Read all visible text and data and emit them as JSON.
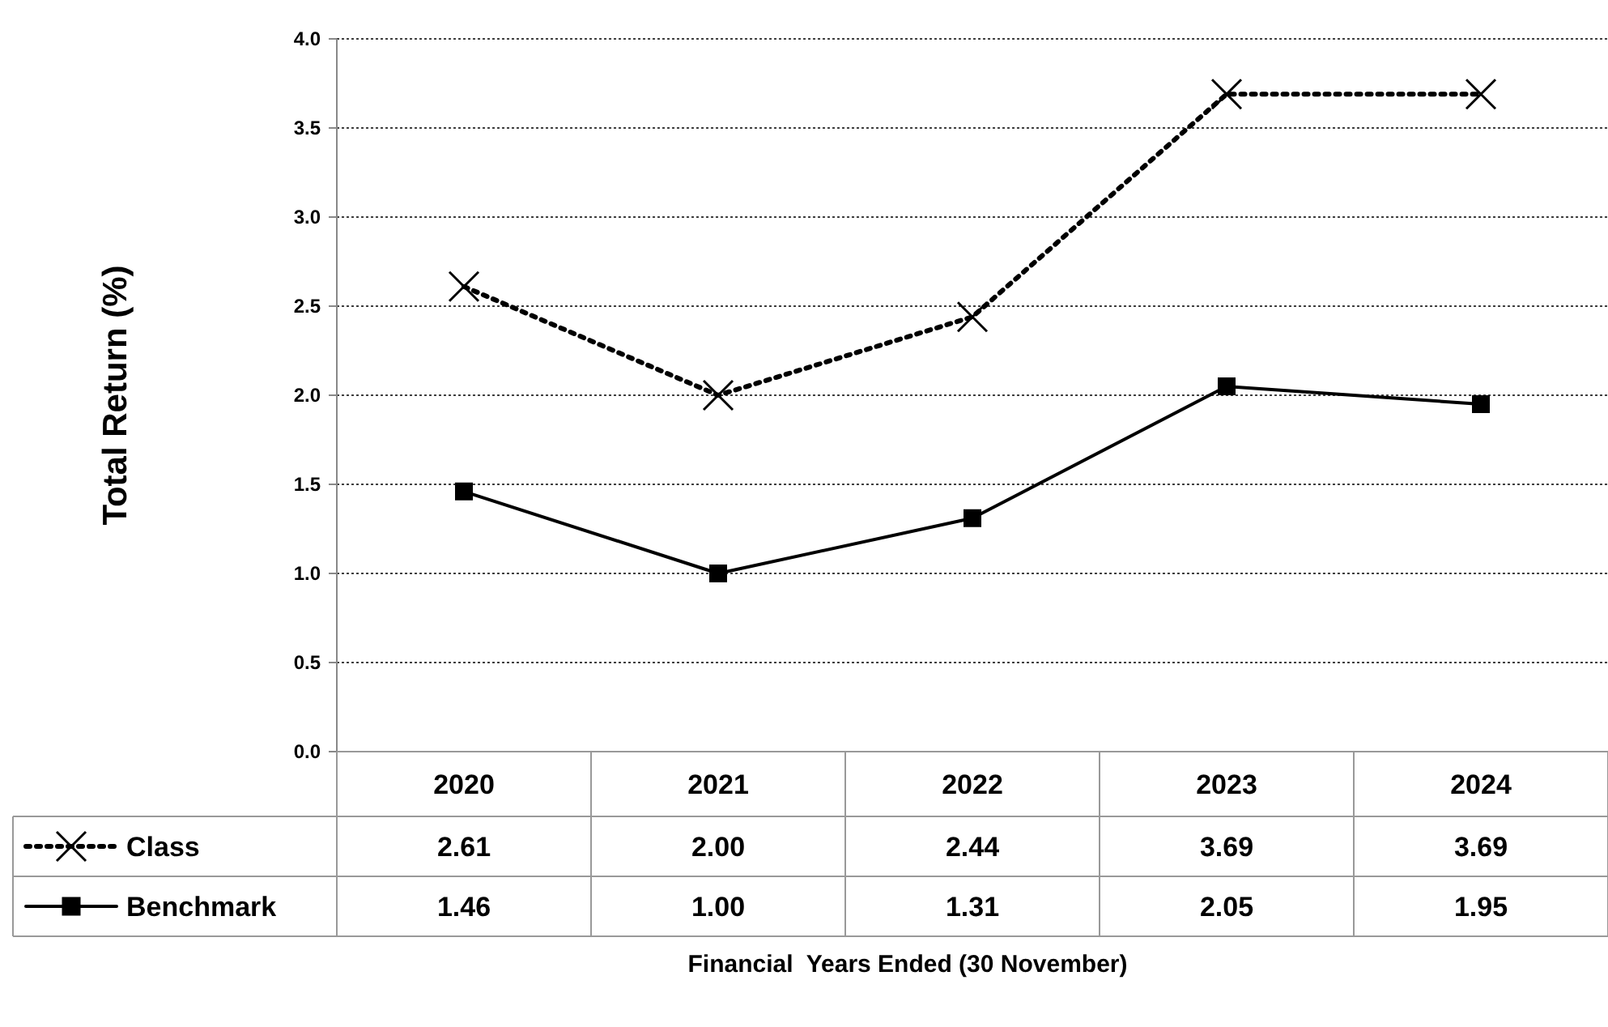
{
  "chart_data": {
    "type": "line",
    "ylabel": "Total Return (%)",
    "annotations": [
      "Financial  Years Ended (30 November)"
    ],
    "categories": [
      "2020",
      "2021",
      "2022",
      "2023",
      "2024"
    ],
    "series": [
      {
        "name": "Class",
        "color": "#000000",
        "values": [
          2.61,
          2.0,
          2.44,
          3.69,
          3.69
        ],
        "value_labels": [
          "2.61",
          "2.00",
          "2.44",
          "3.69",
          "3.69"
        ],
        "marker": "cross",
        "line_style": "dotted"
      },
      {
        "name": "Benchmark",
        "color": "#000000",
        "values": [
          1.46,
          1.0,
          1.31,
          2.05,
          1.95
        ],
        "value_labels": [
          "1.46",
          "1.00",
          "1.31",
          "2.05",
          "1.95"
        ],
        "marker": "square",
        "line_style": "solid"
      }
    ],
    "ylim": [
      0,
      4
    ],
    "yticks": [
      {
        "value": 0,
        "label": "0.0"
      },
      {
        "value": 0.5,
        "label": "0.5"
      },
      {
        "value": 1,
        "label": "1.0"
      },
      {
        "value": 1.5,
        "label": "1.5"
      },
      {
        "value": 2,
        "label": "2.0"
      },
      {
        "value": 2.5,
        "label": "2.5"
      },
      {
        "value": 3,
        "label": "3.0"
      },
      {
        "value": 3.5,
        "label": "3.5"
      },
      {
        "value": 4,
        "label": "4.0"
      }
    ],
    "grid": "y",
    "legend": "bottom"
  }
}
